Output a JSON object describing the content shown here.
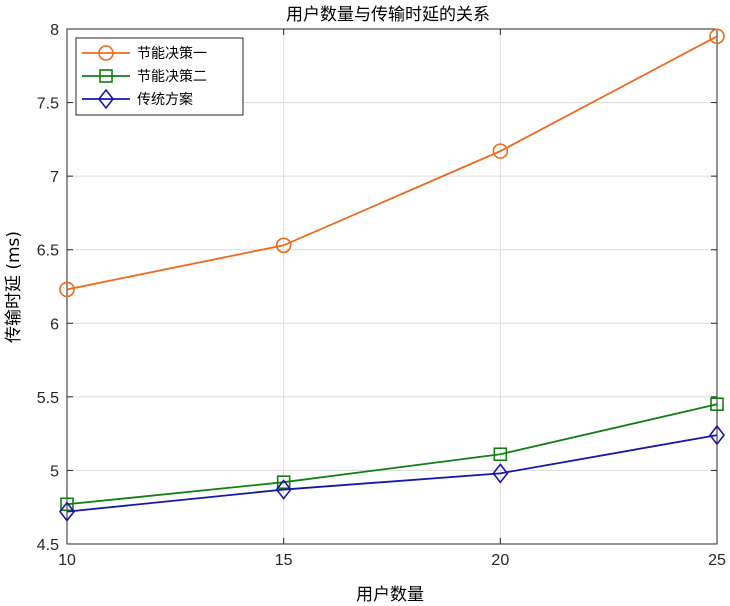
{
  "chart_data": {
    "type": "line",
    "title": "用户数量与传输时延的关系",
    "xlabel": "用户数量",
    "ylabel": "传输时延 (ms)",
    "x": [
      10,
      15,
      20,
      25
    ],
    "xlim": [
      10,
      25
    ],
    "ylim": [
      4.5,
      8
    ],
    "xticks": [
      "10",
      "15",
      "20",
      "25"
    ],
    "yticks": [
      "4.5",
      "5",
      "5.5",
      "6",
      "6.5",
      "7",
      "7.5",
      "8"
    ],
    "grid": true,
    "legend_position": "top-left",
    "series": [
      {
        "name": "节能决策一",
        "values": [
          6.23,
          6.53,
          7.17,
          7.95
        ],
        "color": "#ED6A1E",
        "marker": "circle"
      },
      {
        "name": "节能决策二",
        "values": [
          4.77,
          4.92,
          5.11,
          5.45
        ],
        "color": "#117F11",
        "marker": "square"
      },
      {
        "name": "传统方案",
        "values": [
          4.72,
          4.87,
          4.98,
          5.24
        ],
        "color": "#1717A8",
        "marker": "diamond"
      }
    ]
  }
}
